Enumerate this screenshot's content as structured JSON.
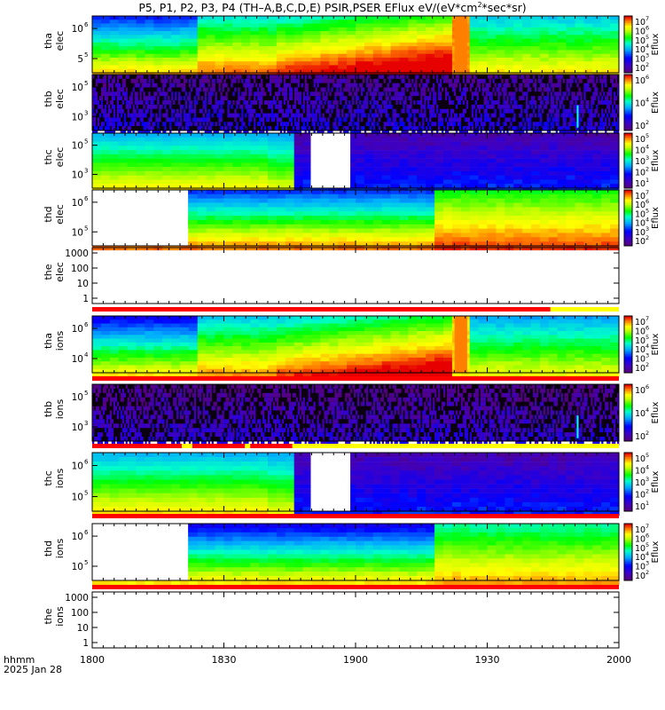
{
  "title": {
    "main": "P5, P1, P2, P3, P4 (TH–A,B,C,D,E) PSIR,PSER EFlux eV/(eV*cm",
    "sup": "2",
    "tail": "*sec*sr)"
  },
  "colorbar_label": "Eflux",
  "footer": {
    "label": "hhmm",
    "date": "2025 Jan 28"
  },
  "palette": {
    "red": "#ff0000",
    "yellow": "#ffff00",
    "black": "#000000",
    "purple": "#55007f"
  },
  "chart_data": {
    "type": "heatmap",
    "x_ticks": [
      "1800",
      "1830",
      "1900",
      "1930",
      "2000"
    ],
    "panels": [
      {
        "name": "thb-elec-placeholder",
        "label1": "tha",
        "label2": "elec",
        "yticks": [
          "10",
          "5"
        ],
        "yexp": [
          "6",
          "5"
        ],
        "colorbar": [
          {
            "b": "10",
            "e": "7"
          },
          {
            "b": "10",
            "e": "6"
          },
          {
            "b": "10",
            "e": "5"
          },
          {
            "b": "10",
            "e": "4"
          },
          {
            "b": "10",
            "e": "3"
          },
          {
            "b": "10",
            "e": "2"
          }
        ]
      },
      {
        "name": "thb-elec",
        "label1": "thb",
        "label2": "elec",
        "yticks": [
          "10",
          "10"
        ],
        "yexp": [
          "5",
          "3"
        ],
        "colorbar": [
          {
            "b": "10",
            "e": "6"
          },
          {
            "b": "10",
            "e": "4"
          },
          {
            "b": "10",
            "e": "2"
          }
        ]
      },
      {
        "name": "thc-elec",
        "label1": "thc",
        "label2": "elec",
        "yticks": [
          "10",
          "10"
        ],
        "yexp": [
          "5",
          "3"
        ],
        "colorbar": [
          {
            "b": "10",
            "e": "5"
          },
          {
            "b": "10",
            "e": "4"
          },
          {
            "b": "10",
            "e": "3"
          },
          {
            "b": "10",
            "e": "2"
          },
          {
            "b": "10",
            "e": "1"
          }
        ]
      },
      {
        "name": "thd-elec",
        "label1": "thd",
        "label2": "elec",
        "yticks": [
          "10",
          "10"
        ],
        "yexp": [
          "6",
          "5"
        ],
        "colorbar": [
          {
            "b": "10",
            "e": "7"
          },
          {
            "b": "10",
            "e": "6"
          },
          {
            "b": "10",
            "e": "5"
          },
          {
            "b": "10",
            "e": "4"
          },
          {
            "b": "10",
            "e": "3"
          },
          {
            "b": "10",
            "e": "2"
          }
        ]
      },
      {
        "name": "the-elec",
        "label1": "the",
        "label2": "elec",
        "yticks_plain": [
          "1000",
          "100",
          "10",
          "1"
        ]
      },
      {
        "name": "tha-ions",
        "label1": "tha",
        "label2": "ions",
        "yticks": [
          "10",
          "10"
        ],
        "yexp": [
          "6",
          "4"
        ],
        "colorbar": [
          {
            "b": "10",
            "e": "7"
          },
          {
            "b": "10",
            "e": "6"
          },
          {
            "b": "10",
            "e": "5"
          },
          {
            "b": "10",
            "e": "4"
          },
          {
            "b": "10",
            "e": "3"
          },
          {
            "b": "10",
            "e": "2"
          }
        ]
      },
      {
        "name": "thb-ions",
        "label1": "thb",
        "label2": "ions",
        "yticks": [
          "10",
          "10"
        ],
        "yexp": [
          "5",
          "3"
        ],
        "colorbar": [
          {
            "b": "10",
            "e": "6"
          },
          {
            "b": "10",
            "e": "4"
          },
          {
            "b": "10",
            "e": "2"
          }
        ]
      },
      {
        "name": "thc-ions",
        "label1": "thc",
        "label2": "ions",
        "yticks": [
          "10",
          "10"
        ],
        "yexp": [
          "6",
          "5"
        ],
        "colorbar": [
          {
            "b": "10",
            "e": "5"
          },
          {
            "b": "10",
            "e": "4"
          },
          {
            "b": "10",
            "e": "3"
          },
          {
            "b": "10",
            "e": "2"
          },
          {
            "b": "10",
            "e": "1"
          }
        ]
      },
      {
        "name": "thd-ions",
        "label1": "thd",
        "label2": "ions",
        "yticks": [
          "10",
          "10"
        ],
        "yexp": [
          "6",
          "5"
        ],
        "colorbar": [
          {
            "b": "10",
            "e": "7"
          },
          {
            "b": "10",
            "e": "6"
          },
          {
            "b": "10",
            "e": "5"
          },
          {
            "b": "10",
            "e": "4"
          },
          {
            "b": "10",
            "e": "3"
          },
          {
            "b": "10",
            "e": "2"
          }
        ]
      },
      {
        "name": "the-ions",
        "label1": "the",
        "label2": "ions",
        "yticks_plain": [
          "1000",
          "100",
          "10",
          "1"
        ]
      }
    ]
  }
}
